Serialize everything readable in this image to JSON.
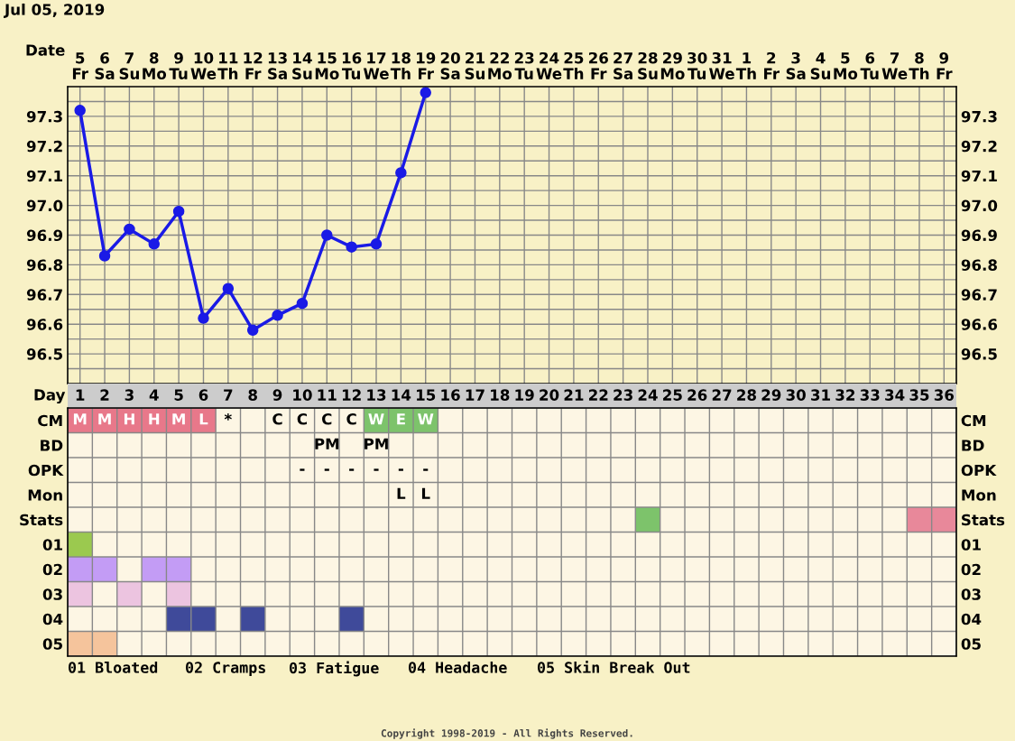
{
  "chart_data": [
    {
      "type": "line",
      "title": "Jul 05, 2019",
      "xlabel": "Date",
      "categories": [
        "5\nFr",
        "6\nSa",
        "7\nSu",
        "8\nMo",
        "9\nTu",
        "10\nWe",
        "11\nTh",
        "12\nFr",
        "13\nSa",
        "14\nSu",
        "15\nMo",
        "16\nTu",
        "17\nWe",
        "18\nTh",
        "19\nFr",
        "20\nSa",
        "21\nSu",
        "22\nMo",
        "23\nTu",
        "24\nWe",
        "25\nTh",
        "26\nFr",
        "27\nSa",
        "28\nSu",
        "29\nMo",
        "30\nTu",
        "31\nWe",
        "1\nTh",
        "2\nFr",
        "3\nSa",
        "4\nSu",
        "5\nMo",
        "6\nTu",
        "7\nWe",
        "8\nTh",
        "9\nFr"
      ],
      "series": [
        {
          "color": "#1a1ae6",
          "values": [
            97.32,
            96.83,
            96.92,
            96.87,
            96.98,
            96.62,
            96.72,
            96.58,
            96.63,
            96.67,
            96.9,
            96.86,
            96.87,
            97.11,
            97.38,
            null,
            null,
            null,
            null,
            null,
            null,
            null,
            null,
            null,
            null,
            null,
            null,
            null,
            null,
            null,
            null,
            null,
            null,
            null,
            null,
            null
          ]
        }
      ],
      "ylim": [
        96.4,
        97.4
      ],
      "yticks": [
        {
          "value": 96.45,
          "label": null
        },
        96.5,
        {
          "value": 96.55,
          "label": null
        },
        96.6,
        {
          "value": 96.65,
          "label": null
        },
        96.7,
        {
          "value": 96.75,
          "label": null
        },
        96.8,
        {
          "value": 96.85,
          "label": null
        },
        96.9,
        {
          "value": 96.95,
          "label": null
        },
        {
          "value": 97.0,
          "label": "97.0"
        },
        {
          "value": 97.05,
          "label": null
        },
        97.1,
        {
          "value": 97.15,
          "label": null
        },
        97.2,
        {
          "value": 97.25,
          "label": null
        },
        97.3,
        {
          "value": 97.35,
          "label": null
        }
      ],
      "y2lim": [
        96.4,
        97.4
      ],
      "y2ticks": [
        96.5,
        96.6,
        96.7,
        96.8,
        96.9,
        {
          "value": 97.0,
          "label": "97.0"
        },
        97.1,
        97.2,
        97.3
      ],
      "grid": true,
      "marker": "circle",
      "line_style": "solid",
      "legend": false
    },
    {
      "type": "heatmap",
      "xlabel": "Day",
      "categories": [
        "1",
        "2",
        "3",
        "4",
        "5",
        "6",
        "7",
        "8",
        "9",
        "10",
        "11",
        "12",
        "13",
        "14",
        "15",
        "16",
        "17",
        "18",
        "19",
        "20",
        "21",
        "22",
        "23",
        "24",
        "25",
        "26",
        "27",
        "28",
        "29",
        "30",
        "31",
        "32",
        "33",
        "34",
        "35",
        "36"
      ],
      "y_categories": [
        "CM",
        "BD",
        "OPK",
        "Mon",
        "Stats",
        "01",
        "02",
        "03",
        "04",
        "05"
      ],
      "y2_categories": [
        "CM",
        "BD",
        "OPK",
        "Mon",
        "Stats",
        "01",
        "02",
        "03",
        "04",
        "05"
      ],
      "cells": [
        [
          null,
          null,
          null,
          null,
          null,
          null,
          null,
          null,
          null,
          null,
          null,
          null,
          null,
          null,
          null,
          null,
          null,
          null,
          null,
          null,
          null,
          null,
          null,
          null,
          null,
          null,
          null,
          null,
          null,
          null,
          null,
          null,
          null,
          null,
          null,
          null
        ],
        [
          null,
          null,
          null,
          null,
          null,
          null,
          null,
          null,
          null,
          null,
          null,
          null,
          null,
          null,
          null,
          null,
          null,
          null,
          null,
          null,
          null,
          null,
          null,
          null,
          null,
          null,
          null,
          null,
          null,
          null,
          null,
          null,
          null,
          null,
          null,
          null
        ],
        [
          null,
          null,
          null,
          null,
          null,
          null,
          null,
          null,
          null,
          null,
          null,
          null,
          null,
          null,
          null,
          null,
          null,
          null,
          null,
          null,
          null,
          null,
          null,
          null,
          null,
          null,
          null,
          null,
          null,
          null,
          null,
          null,
          null,
          null,
          null,
          null
        ],
        [
          null,
          null,
          null,
          null,
          null,
          null,
          null,
          null,
          null,
          null,
          null,
          null,
          null,
          null,
          null,
          null,
          null,
          null,
          null,
          null,
          null,
          null,
          null,
          null,
          null,
          null,
          null,
          null,
          null,
          null,
          null,
          null,
          null,
          null,
          null,
          null
        ],
        [
          null,
          null,
          null,
          null,
          null,
          null,
          null,
          null,
          null,
          null,
          null,
          null,
          null,
          null,
          null,
          null,
          null,
          null,
          null,
          null,
          null,
          null,
          null,
          null,
          null,
          null,
          null,
          null,
          null,
          null,
          null,
          null,
          null,
          null,
          null,
          null
        ],
        [
          null,
          null,
          null,
          null,
          null,
          null,
          null,
          null,
          null,
          null,
          null,
          null,
          null,
          null,
          null,
          null,
          null,
          null,
          null,
          null,
          null,
          null,
          null,
          null,
          null,
          null,
          null,
          null,
          null,
          null,
          null,
          null,
          null,
          null,
          null,
          null
        ],
        [
          null,
          null,
          null,
          null,
          null,
          null,
          null,
          null,
          null,
          null,
          null,
          null,
          null,
          null,
          null,
          null,
          null,
          null,
          null,
          null,
          null,
          null,
          null,
          null,
          null,
          null,
          null,
          null,
          null,
          null,
          null,
          null,
          null,
          null,
          null,
          null
        ],
        [
          null,
          null,
          null,
          null,
          null,
          null,
          null,
          null,
          null,
          null,
          null,
          null,
          null,
          null,
          null,
          null,
          null,
          null,
          null,
          null,
          null,
          null,
          null,
          null,
          null,
          null,
          null,
          null,
          null,
          null,
          null,
          null,
          null,
          null,
          null,
          null
        ],
        [
          null,
          null,
          null,
          null,
          null,
          null,
          null,
          null,
          null,
          null,
          null,
          null,
          null,
          null,
          null,
          null,
          null,
          null,
          null,
          null,
          null,
          null,
          null,
          null,
          null,
          null,
          null,
          null,
          null,
          null,
          null,
          null,
          null,
          null,
          null,
          null
        ],
        [
          null,
          null,
          null,
          null,
          null,
          null,
          null,
          null,
          null,
          null,
          null,
          null,
          null,
          null,
          null,
          null,
          null,
          null,
          null,
          null,
          null,
          null,
          null,
          null,
          null,
          null,
          null,
          null,
          null,
          null,
          null,
          null,
          null,
          null,
          null,
          null
        ]
      ],
      "cell_labels": [
        [
          "M",
          "M",
          "H",
          "H",
          "M",
          "L",
          "*",
          null,
          "C",
          "C",
          "C",
          "C",
          "W",
          "E",
          "W",
          null,
          null,
          null,
          null,
          null,
          null,
          null,
          null,
          null,
          null,
          null,
          null,
          null,
          null,
          null,
          null,
          null,
          null,
          null,
          null,
          null
        ],
        [
          null,
          null,
          null,
          null,
          null,
          null,
          null,
          null,
          null,
          null,
          "PM",
          null,
          "PM",
          null,
          null,
          null,
          null,
          null,
          null,
          null,
          null,
          null,
          null,
          null,
          null,
          null,
          null,
          null,
          null,
          null,
          null,
          null,
          null,
          null,
          null,
          null
        ],
        [
          null,
          null,
          null,
          null,
          null,
          null,
          null,
          null,
          null,
          "-",
          "-",
          "-",
          "-",
          "-",
          "-",
          null,
          null,
          null,
          null,
          null,
          null,
          null,
          null,
          null,
          null,
          null,
          null,
          null,
          null,
          null,
          null,
          null,
          null,
          null,
          null,
          null
        ],
        [
          null,
          null,
          null,
          null,
          null,
          null,
          null,
          null,
          null,
          null,
          null,
          null,
          null,
          "L",
          "L",
          null,
          null,
          null,
          null,
          null,
          null,
          null,
          null,
          null,
          null,
          null,
          null,
          null,
          null,
          null,
          null,
          null,
          null,
          null,
          null,
          null
        ],
        [
          null,
          null,
          null,
          null,
          null,
          null,
          null,
          null,
          null,
          null,
          null,
          null,
          null,
          null,
          null,
          null,
          null,
          null,
          null,
          null,
          null,
          null,
          null,
          null,
          null,
          null,
          null,
          null,
          null,
          null,
          null,
          null,
          null,
          null,
          null,
          null
        ],
        [
          null,
          null,
          null,
          null,
          null,
          null,
          null,
          null,
          null,
          null,
          null,
          null,
          null,
          null,
          null,
          null,
          null,
          null,
          null,
          null,
          null,
          null,
          null,
          null,
          null,
          null,
          null,
          null,
          null,
          null,
          null,
          null,
          null,
          null,
          null,
          null
        ],
        [
          null,
          null,
          null,
          null,
          null,
          null,
          null,
          null,
          null,
          null,
          null,
          null,
          null,
          null,
          null,
          null,
          null,
          null,
          null,
          null,
          null,
          null,
          null,
          null,
          null,
          null,
          null,
          null,
          null,
          null,
          null,
          null,
          null,
          null,
          null,
          null
        ],
        [
          null,
          null,
          null,
          null,
          null,
          null,
          null,
          null,
          null,
          null,
          null,
          null,
          null,
          null,
          null,
          null,
          null,
          null,
          null,
          null,
          null,
          null,
          null,
          null,
          null,
          null,
          null,
          null,
          null,
          null,
          null,
          null,
          null,
          null,
          null,
          null
        ],
        [
          null,
          null,
          null,
          null,
          null,
          null,
          null,
          null,
          null,
          null,
          null,
          null,
          null,
          null,
          null,
          null,
          null,
          null,
          null,
          null,
          null,
          null,
          null,
          null,
          null,
          null,
          null,
          null,
          null,
          null,
          null,
          null,
          null,
          null,
          null,
          null
        ],
        [
          null,
          null,
          null,
          null,
          null,
          null,
          null,
          null,
          null,
          null,
          null,
          null,
          null,
          null,
          null,
          null,
          null,
          null,
          null,
          null,
          null,
          null,
          null,
          null,
          null,
          null,
          null,
          null,
          null,
          null,
          null,
          null,
          null,
          null,
          null,
          null
        ]
      ],
      "colors": [
        [
          "#e8788a",
          "#e8788a",
          "#e8788a",
          "#e8788a",
          "#e8788a",
          "#e8788a",
          null,
          null,
          null,
          null,
          null,
          null,
          "#7dc36b",
          "#7dc36b",
          "#7dc36b",
          null,
          null,
          null,
          null,
          null,
          null,
          null,
          null,
          null,
          null,
          null,
          null,
          null,
          null,
          null,
          null,
          null,
          null,
          null,
          null,
          null
        ],
        [
          null,
          null,
          null,
          null,
          null,
          null,
          null,
          null,
          null,
          null,
          null,
          null,
          null,
          null,
          null,
          null,
          null,
          null,
          null,
          null,
          null,
          null,
          null,
          null,
          null,
          null,
          null,
          null,
          null,
          null,
          null,
          null,
          null,
          null,
          null,
          null
        ],
        [
          null,
          null,
          null,
          null,
          null,
          null,
          null,
          null,
          null,
          null,
          null,
          null,
          null,
          null,
          null,
          null,
          null,
          null,
          null,
          null,
          null,
          null,
          null,
          null,
          null,
          null,
          null,
          null,
          null,
          null,
          null,
          null,
          null,
          null,
          null,
          null
        ],
        [
          null,
          null,
          null,
          null,
          null,
          null,
          null,
          null,
          null,
          null,
          null,
          null,
          null,
          null,
          null,
          null,
          null,
          null,
          null,
          null,
          null,
          null,
          null,
          null,
          null,
          null,
          null,
          null,
          null,
          null,
          null,
          null,
          null,
          null,
          null,
          null
        ],
        [
          null,
          null,
          null,
          null,
          null,
          null,
          null,
          null,
          null,
          null,
          null,
          null,
          null,
          null,
          null,
          null,
          null,
          null,
          null,
          null,
          null,
          null,
          null,
          "#7dc36b",
          null,
          null,
          null,
          null,
          null,
          null,
          null,
          null,
          null,
          null,
          "#e8889a",
          "#e8889a"
        ],
        [
          "#9bc94f",
          null,
          null,
          null,
          null,
          null,
          null,
          null,
          null,
          null,
          null,
          null,
          null,
          null,
          null,
          null,
          null,
          null,
          null,
          null,
          null,
          null,
          null,
          null,
          null,
          null,
          null,
          null,
          null,
          null,
          null,
          null,
          null,
          null,
          null,
          null
        ],
        [
          "#c39cf5",
          "#c39cf5",
          null,
          "#c39cf5",
          "#c39cf5",
          null,
          null,
          null,
          null,
          null,
          null,
          null,
          null,
          null,
          null,
          null,
          null,
          null,
          null,
          null,
          null,
          null,
          null,
          null,
          null,
          null,
          null,
          null,
          null,
          null,
          null,
          null,
          null,
          null,
          null,
          null
        ],
        [
          "#ecc4e0",
          null,
          "#ecc4e0",
          null,
          "#ecc4e0",
          null,
          null,
          null,
          null,
          null,
          null,
          null,
          null,
          null,
          null,
          null,
          null,
          null,
          null,
          null,
          null,
          null,
          null,
          null,
          null,
          null,
          null,
          null,
          null,
          null,
          null,
          null,
          null,
          null,
          null,
          null
        ],
        [
          null,
          null,
          null,
          null,
          "#3f4a9a",
          "#3f4a9a",
          null,
          "#3f4a9a",
          null,
          null,
          null,
          "#3f4a9a",
          null,
          null,
          null,
          null,
          null,
          null,
          null,
          null,
          null,
          null,
          null,
          null,
          null,
          null,
          null,
          null,
          null,
          null,
          null,
          null,
          null,
          null,
          null,
          null
        ],
        [
          "#f5c49c",
          "#f5c49c",
          null,
          null,
          null,
          null,
          null,
          null,
          null,
          null,
          null,
          null,
          null,
          null,
          null,
          null,
          null,
          null,
          null,
          null,
          null,
          null,
          null,
          null,
          null,
          null,
          null,
          null,
          null,
          null,
          null,
          null,
          null,
          null,
          null,
          null
        ]
      ],
      "grid": true,
      "annotations": [
        "01 Bloated",
        "02 Cramps",
        "03 Fatigue",
        "04 Headache",
        "05 Skin Break Out",
        "Copyright 1998-2019 - All Rights Reserved."
      ]
    }
  ]
}
